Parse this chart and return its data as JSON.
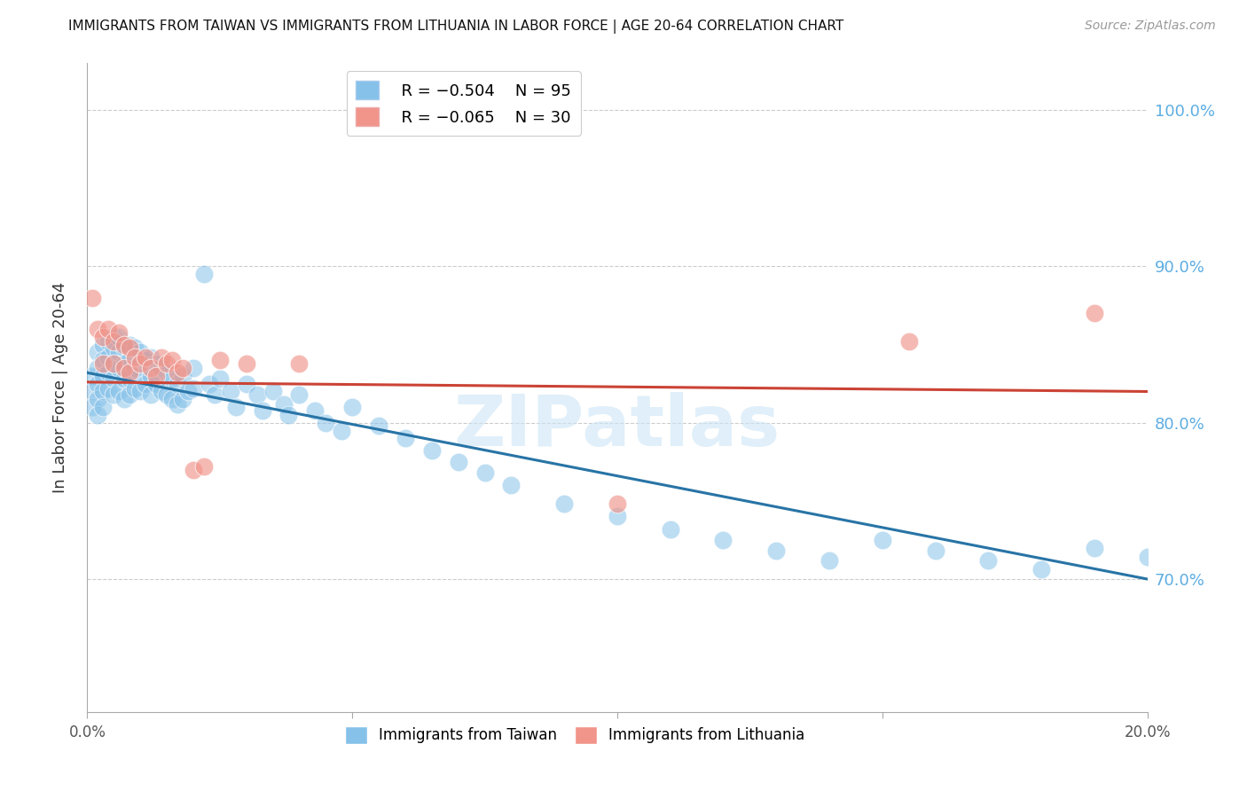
{
  "title": "IMMIGRANTS FROM TAIWAN VS IMMIGRANTS FROM LITHUANIA IN LABOR FORCE | AGE 20-64 CORRELATION CHART",
  "source": "Source: ZipAtlas.com",
  "ylabel": "In Labor Force | Age 20-64",
  "xlim": [
    0.0,
    0.2
  ],
  "ylim": [
    0.615,
    1.03
  ],
  "yticks": [
    0.7,
    0.8,
    0.9,
    1.0
  ],
  "ytick_labels": [
    "70.0%",
    "80.0%",
    "90.0%",
    "100.0%"
  ],
  "xticks": [
    0.0,
    0.05,
    0.1,
    0.15,
    0.2
  ],
  "xtick_labels": [
    "0.0%",
    "",
    "",
    "",
    "20.0%"
  ],
  "watermark": "ZIPatlas",
  "legend_r_taiwan": "R = −0.504",
  "legend_n_taiwan": "N = 95",
  "legend_r_lithuania": "R = −0.065",
  "legend_n_lithuania": "N = 30",
  "taiwan_color": "#85C1E9",
  "lithuania_color": "#F1948A",
  "taiwan_line_color": "#2874A6",
  "lithuania_line_color": "#CB4335",
  "background_color": "#ffffff",
  "grid_color": "#cccccc",
  "right_label_color": "#5DADE2",
  "taiwan_scatter_x": [
    0.001,
    0.001,
    0.001,
    0.002,
    0.002,
    0.002,
    0.002,
    0.002,
    0.003,
    0.003,
    0.003,
    0.003,
    0.003,
    0.004,
    0.004,
    0.004,
    0.004,
    0.005,
    0.005,
    0.005,
    0.005,
    0.005,
    0.006,
    0.006,
    0.006,
    0.006,
    0.007,
    0.007,
    0.007,
    0.007,
    0.008,
    0.008,
    0.008,
    0.008,
    0.009,
    0.009,
    0.009,
    0.01,
    0.01,
    0.01,
    0.011,
    0.011,
    0.012,
    0.012,
    0.012,
    0.013,
    0.013,
    0.014,
    0.014,
    0.015,
    0.015,
    0.016,
    0.016,
    0.017,
    0.017,
    0.018,
    0.018,
    0.019,
    0.02,
    0.02,
    0.022,
    0.023,
    0.024,
    0.025,
    0.027,
    0.028,
    0.03,
    0.032,
    0.033,
    0.035,
    0.037,
    0.038,
    0.04,
    0.043,
    0.045,
    0.048,
    0.05,
    0.055,
    0.06,
    0.065,
    0.07,
    0.075,
    0.08,
    0.09,
    0.1,
    0.11,
    0.12,
    0.13,
    0.14,
    0.15,
    0.16,
    0.17,
    0.18,
    0.19,
    0.2
  ],
  "taiwan_scatter_y": [
    0.83,
    0.82,
    0.81,
    0.845,
    0.835,
    0.825,
    0.815,
    0.805,
    0.85,
    0.84,
    0.83,
    0.82,
    0.81,
    0.852,
    0.842,
    0.832,
    0.822,
    0.855,
    0.848,
    0.838,
    0.828,
    0.818,
    0.855,
    0.845,
    0.835,
    0.82,
    0.848,
    0.838,
    0.828,
    0.815,
    0.85,
    0.84,
    0.828,
    0.818,
    0.848,
    0.835,
    0.822,
    0.845,
    0.832,
    0.82,
    0.84,
    0.825,
    0.842,
    0.83,
    0.818,
    0.838,
    0.825,
    0.835,
    0.82,
    0.832,
    0.818,
    0.828,
    0.815,
    0.825,
    0.812,
    0.83,
    0.815,
    0.82,
    0.835,
    0.822,
    0.895,
    0.825,
    0.818,
    0.828,
    0.82,
    0.81,
    0.825,
    0.818,
    0.808,
    0.82,
    0.812,
    0.805,
    0.818,
    0.808,
    0.8,
    0.795,
    0.81,
    0.798,
    0.79,
    0.782,
    0.775,
    0.768,
    0.76,
    0.748,
    0.74,
    0.732,
    0.725,
    0.718,
    0.712,
    0.725,
    0.718,
    0.712,
    0.706,
    0.72,
    0.714
  ],
  "lithuania_scatter_x": [
    0.001,
    0.002,
    0.003,
    0.003,
    0.004,
    0.005,
    0.005,
    0.006,
    0.007,
    0.007,
    0.008,
    0.008,
    0.009,
    0.01,
    0.011,
    0.012,
    0.013,
    0.014,
    0.015,
    0.016,
    0.017,
    0.018,
    0.02,
    0.022,
    0.025,
    0.03,
    0.04,
    0.1,
    0.155,
    0.19
  ],
  "lithuania_scatter_y": [
    0.88,
    0.86,
    0.855,
    0.838,
    0.86,
    0.852,
    0.838,
    0.858,
    0.85,
    0.835,
    0.848,
    0.832,
    0.842,
    0.838,
    0.842,
    0.835,
    0.83,
    0.842,
    0.838,
    0.84,
    0.832,
    0.835,
    0.77,
    0.772,
    0.84,
    0.838,
    0.838,
    0.748,
    0.852,
    0.87
  ],
  "tw_line_x0": 0.0,
  "tw_line_y0": 0.832,
  "tw_line_x1": 0.2,
  "tw_line_y1": 0.7,
  "lt_line_x0": 0.0,
  "lt_line_y0": 0.826,
  "lt_line_x1": 0.2,
  "lt_line_y1": 0.82
}
